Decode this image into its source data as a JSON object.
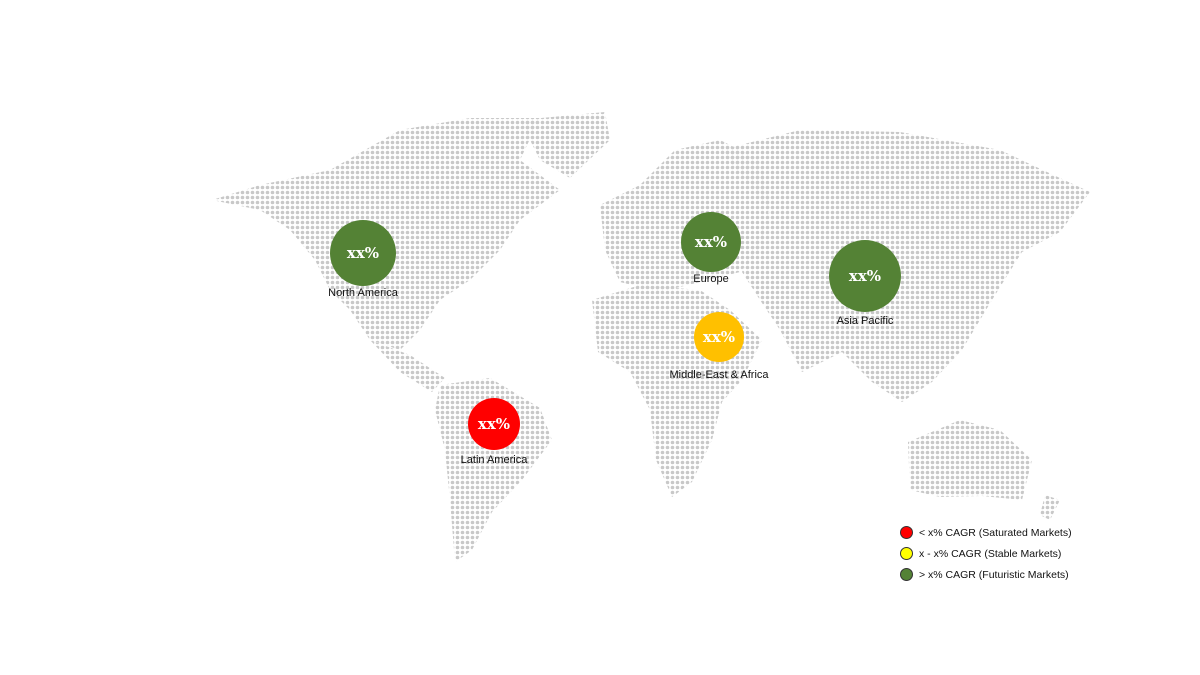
{
  "regions": [
    {
      "name": "North America",
      "value": "xx%",
      "category": "futuristic",
      "color": "#548235"
    },
    {
      "name": "Europe",
      "value": "xx%",
      "category": "futuristic",
      "color": "#548235"
    },
    {
      "name": "Asia Pacific",
      "value": "xx%",
      "category": "futuristic",
      "color": "#548235"
    },
    {
      "name": "Middle-East & Africa",
      "value": "xx%",
      "category": "stable",
      "color": "#FFC000"
    },
    {
      "name": "Latin America",
      "value": "xx%",
      "category": "saturated",
      "color": "#FF0000"
    }
  ],
  "legend": [
    {
      "label": "< x% CAGR (Saturated Markets)",
      "color": "#FF0000"
    },
    {
      "label": "x - x% CAGR (Stable Markets)",
      "color": "#FFFF00"
    },
    {
      "label": "> x% CAGR (Futuristic Markets)",
      "color": "#548235"
    }
  ],
  "map_dot_color": "#c8c8c8"
}
